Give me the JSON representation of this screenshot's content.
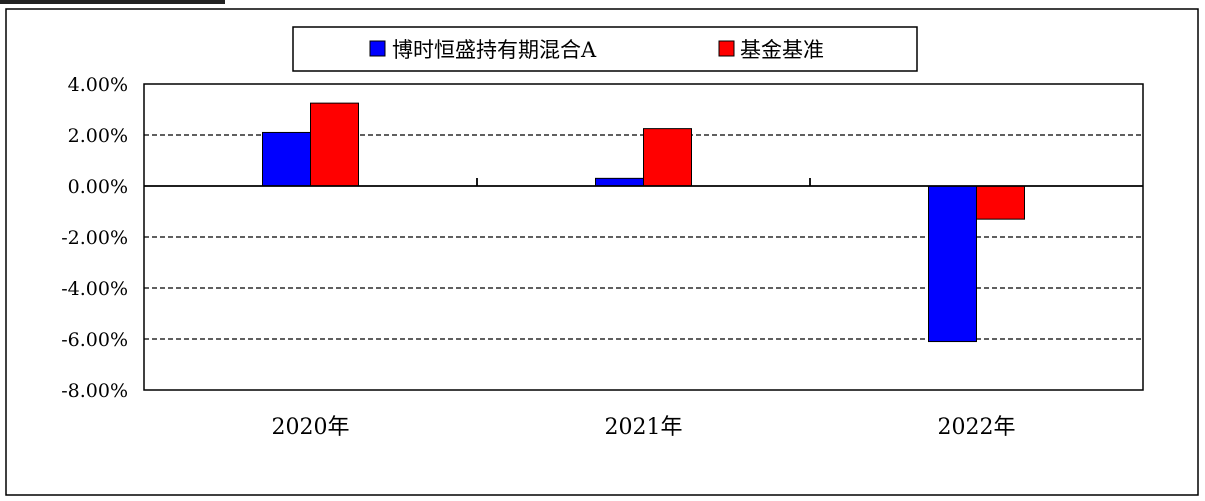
{
  "chart_data": {
    "type": "bar",
    "categories": [
      "2020年",
      "2021年",
      "2022年"
    ],
    "series": [
      {
        "name": "博时恒盛持有期混合A",
        "values": [
          2.1,
          0.3,
          -6.1
        ],
        "color": "#0000ff"
      },
      {
        "name": "基金基准",
        "values": [
          3.25,
          2.25,
          -1.3
        ],
        "color": "#ff0000"
      }
    ],
    "ylim": [
      -8,
      4
    ],
    "yticks": [
      4,
      2,
      0,
      -2,
      -4,
      -6,
      -8
    ],
    "ytick_labels": [
      "4.00%",
      "2.00%",
      "0.00%",
      "-2.00%",
      "-4.00%",
      "-6.00%",
      "-8.00%"
    ],
    "grid": "dashed horizontal",
    "legend_position": "top-center"
  }
}
